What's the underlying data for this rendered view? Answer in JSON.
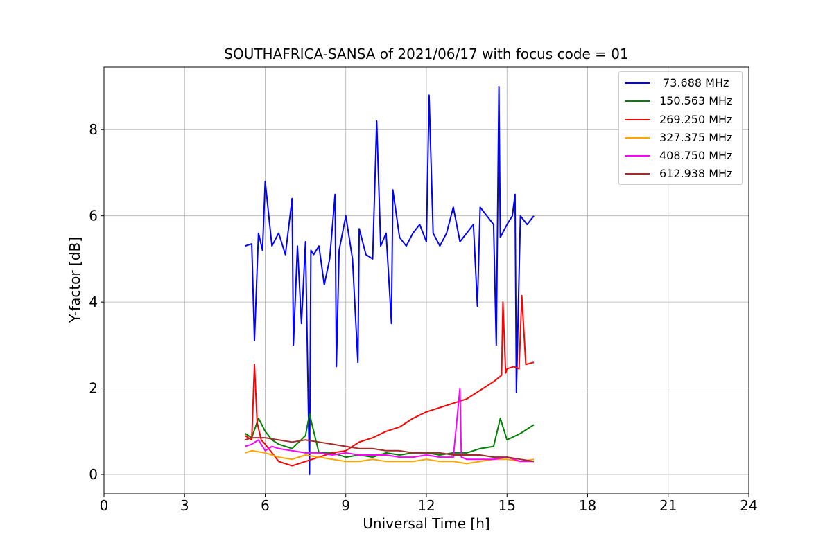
{
  "chart_data": {
    "type": "line",
    "title": "SOUTHAFRICA-SANSA of 2021/06/17 with focus code = 01",
    "xlabel": "Universal Time [h]",
    "ylabel": "Y-factor [dB]",
    "xlim": [
      0,
      24
    ],
    "ylim": [
      -0.45,
      9.45
    ],
    "xticks": [
      "0",
      "3",
      "6",
      "9",
      "12",
      "15",
      "18",
      "21",
      "24"
    ],
    "yticks": [
      "0",
      "2",
      "4",
      "6",
      "8"
    ],
    "grid": true,
    "legend_position": "top-right",
    "series": [
      {
        "name": " 73.688 MHz",
        "color": "#0000ff",
        "x": [
          5.25,
          5.5,
          5.6,
          5.75,
          5.9,
          6.0,
          6.25,
          6.5,
          6.75,
          7.0,
          7.05,
          7.2,
          7.35,
          7.5,
          7.65,
          7.7,
          7.8,
          8.0,
          8.2,
          8.4,
          8.6,
          8.65,
          8.75,
          9.0,
          9.25,
          9.45,
          9.5,
          9.75,
          10.0,
          10.15,
          10.3,
          10.5,
          10.7,
          10.75,
          11.0,
          11.25,
          11.5,
          11.75,
          12.0,
          12.1,
          12.25,
          12.5,
          12.75,
          13.0,
          13.25,
          13.5,
          13.75,
          13.9,
          14.0,
          14.25,
          14.5,
          14.6,
          14.7,
          14.75,
          15.0,
          15.2,
          15.3,
          15.35,
          15.5,
          15.75,
          16.0
        ],
        "y": [
          5.3,
          5.35,
          3.1,
          5.6,
          5.2,
          6.8,
          5.3,
          5.6,
          5.1,
          6.4,
          3.0,
          5.3,
          3.5,
          5.4,
          0.0,
          5.2,
          5.1,
          5.3,
          4.4,
          5.0,
          6.5,
          2.5,
          5.2,
          6.0,
          5.0,
          2.6,
          5.7,
          5.1,
          5.0,
          8.2,
          5.3,
          5.6,
          3.5,
          6.6,
          5.5,
          5.3,
          5.6,
          5.8,
          5.4,
          8.8,
          5.6,
          5.3,
          5.6,
          6.2,
          5.4,
          5.6,
          5.8,
          3.9,
          6.2,
          6.0,
          5.8,
          3.0,
          9.0,
          5.5,
          5.8,
          6.0,
          6.5,
          1.9,
          6.0,
          5.8,
          6.0
        ]
      },
      {
        "name": "150.563 MHz",
        "color": "#008000",
        "x": [
          5.25,
          5.5,
          5.75,
          6.0,
          6.25,
          6.5,
          7.0,
          7.5,
          7.65,
          8.0,
          8.5,
          9.0,
          9.5,
          10.0,
          10.5,
          11.0,
          11.5,
          12.0,
          12.5,
          13.0,
          13.5,
          14.0,
          14.5,
          14.75,
          15.0,
          15.5,
          16.0
        ],
        "y": [
          0.95,
          0.85,
          1.3,
          1.0,
          0.8,
          0.7,
          0.6,
          0.9,
          1.4,
          0.5,
          0.5,
          0.4,
          0.45,
          0.4,
          0.5,
          0.45,
          0.5,
          0.5,
          0.45,
          0.5,
          0.5,
          0.6,
          0.65,
          1.3,
          0.8,
          0.95,
          1.15
        ]
      },
      {
        "name": "269.250 MHz",
        "color": "#ff0000",
        "x": [
          5.25,
          5.5,
          5.6,
          5.7,
          5.85,
          6.0,
          6.5,
          7.0,
          7.5,
          8.0,
          8.5,
          9.0,
          9.5,
          10.0,
          10.5,
          11.0,
          11.5,
          12.0,
          12.5,
          13.0,
          13.5,
          14.0,
          14.5,
          14.8,
          14.85,
          14.95,
          15.0,
          15.25,
          15.45,
          15.55,
          15.7,
          16.0
        ],
        "y": [
          0.9,
          0.8,
          2.55,
          1.2,
          0.8,
          0.7,
          0.3,
          0.2,
          0.3,
          0.4,
          0.5,
          0.55,
          0.75,
          0.85,
          1.0,
          1.1,
          1.3,
          1.45,
          1.55,
          1.65,
          1.75,
          1.95,
          2.15,
          2.3,
          4.0,
          2.35,
          2.45,
          2.5,
          2.45,
          4.15,
          2.55,
          2.6
        ]
      },
      {
        "name": "327.375 MHz",
        "color": "#ffa500",
        "x": [
          5.25,
          5.5,
          6.0,
          6.5,
          7.0,
          7.5,
          8.0,
          8.5,
          9.0,
          9.5,
          10.0,
          10.5,
          11.0,
          11.5,
          12.0,
          12.5,
          13.0,
          13.5,
          14.0,
          14.5,
          15.0,
          15.5,
          16.0
        ],
        "y": [
          0.5,
          0.55,
          0.5,
          0.4,
          0.35,
          0.45,
          0.4,
          0.35,
          0.3,
          0.3,
          0.35,
          0.3,
          0.3,
          0.3,
          0.35,
          0.3,
          0.3,
          0.25,
          0.3,
          0.35,
          0.35,
          0.3,
          0.35
        ]
      },
      {
        "name": "408.750 MHz",
        "color": "#ff00ff",
        "x": [
          5.25,
          5.5,
          5.75,
          6.0,
          6.25,
          6.5,
          7.0,
          7.5,
          8.0,
          8.5,
          9.0,
          9.5,
          10.0,
          10.5,
          11.0,
          11.5,
          12.0,
          12.5,
          13.0,
          13.25,
          13.3,
          13.5,
          14.0,
          14.5,
          15.0,
          15.5,
          16.0
        ],
        "y": [
          0.65,
          0.7,
          0.8,
          0.55,
          0.65,
          0.6,
          0.55,
          0.5,
          0.5,
          0.45,
          0.5,
          0.45,
          0.45,
          0.45,
          0.4,
          0.4,
          0.45,
          0.4,
          0.4,
          2.0,
          0.4,
          0.35,
          0.35,
          0.35,
          0.4,
          0.3,
          0.3
        ]
      },
      {
        "name": "612.938 MHz",
        "color": "#a52a2a",
        "x": [
          5.25,
          5.5,
          6.0,
          6.5,
          7.0,
          7.5,
          8.0,
          8.5,
          9.0,
          9.5,
          10.0,
          10.5,
          11.0,
          11.5,
          12.0,
          12.5,
          13.0,
          13.5,
          14.0,
          14.5,
          15.0,
          15.5,
          16.0
        ],
        "y": [
          0.8,
          0.85,
          0.85,
          0.8,
          0.75,
          0.8,
          0.75,
          0.7,
          0.65,
          0.6,
          0.6,
          0.55,
          0.55,
          0.5,
          0.5,
          0.5,
          0.45,
          0.45,
          0.45,
          0.4,
          0.4,
          0.35,
          0.3
        ]
      }
    ]
  }
}
